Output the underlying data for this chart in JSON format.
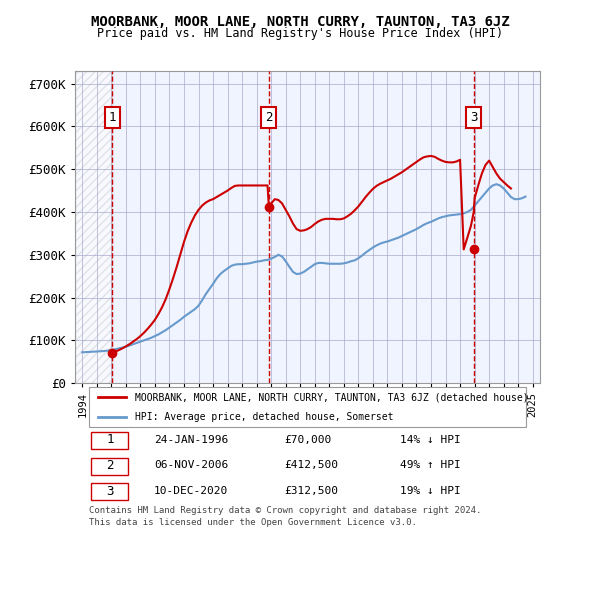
{
  "title": "MOORBANK, MOOR LANE, NORTH CURRY, TAUNTON, TA3 6JZ",
  "subtitle": "Price paid vs. HM Land Registry's House Price Index (HPI)",
  "legend_label_red": "MOORBANK, MOOR LANE, NORTH CURRY, TAUNTON, TA3 6JZ (detached house)",
  "legend_label_blue": "HPI: Average price, detached house, Somerset",
  "footer1": "Contains HM Land Registry data © Crown copyright and database right 2024.",
  "footer2": "This data is licensed under the Open Government Licence v3.0.",
  "sales": [
    {
      "num": 1,
      "date_label": "24-JAN-1996",
      "date_x": 1996.07,
      "price": 70000,
      "pct": "14%",
      "dir": "↓"
    },
    {
      "num": 2,
      "date_label": "06-NOV-2006",
      "date_x": 2006.84,
      "price": 412500,
      "pct": "49%",
      "dir": "↑"
    },
    {
      "num": 3,
      "date_label": "10-DEC-2020",
      "date_x": 2020.94,
      "price": 312500,
      "pct": "19%",
      "dir": "↓"
    }
  ],
  "ylim": [
    0,
    730000
  ],
  "xlim": [
    1993.5,
    2025.5
  ],
  "yticks": [
    0,
    100000,
    200000,
    300000,
    400000,
    500000,
    600000,
    700000
  ],
  "ytick_labels": [
    "£0",
    "£100K",
    "£200K",
    "£300K",
    "£400K",
    "£500K",
    "£600K",
    "£700K"
  ],
  "xticks": [
    1994,
    1995,
    1996,
    1997,
    1998,
    1999,
    2000,
    2001,
    2002,
    2003,
    2004,
    2005,
    2006,
    2007,
    2008,
    2009,
    2010,
    2011,
    2012,
    2013,
    2014,
    2015,
    2016,
    2017,
    2018,
    2019,
    2020,
    2021,
    2022,
    2023,
    2024,
    2025
  ],
  "hpi_x": [
    1994,
    1994.25,
    1994.5,
    1994.75,
    1995,
    1995.25,
    1995.5,
    1995.75,
    1996,
    1996.25,
    1996.5,
    1996.75,
    1997,
    1997.25,
    1997.5,
    1997.75,
    1998,
    1998.25,
    1998.5,
    1998.75,
    1999,
    1999.25,
    1999.5,
    1999.75,
    2000,
    2000.25,
    2000.5,
    2000.75,
    2001,
    2001.25,
    2001.5,
    2001.75,
    2002,
    2002.25,
    2002.5,
    2002.75,
    2003,
    2003.25,
    2003.5,
    2003.75,
    2004,
    2004.25,
    2004.5,
    2004.75,
    2005,
    2005.25,
    2005.5,
    2005.75,
    2006,
    2006.25,
    2006.5,
    2006.75,
    2007,
    2007.25,
    2007.5,
    2007.75,
    2008,
    2008.25,
    2008.5,
    2008.75,
    2009,
    2009.25,
    2009.5,
    2009.75,
    2010,
    2010.25,
    2010.5,
    2010.75,
    2011,
    2011.25,
    2011.5,
    2011.75,
    2012,
    2012.25,
    2012.5,
    2012.75,
    2013,
    2013.25,
    2013.5,
    2013.75,
    2014,
    2014.25,
    2014.5,
    2014.75,
    2015,
    2015.25,
    2015.5,
    2015.75,
    2016,
    2016.25,
    2016.5,
    2016.75,
    2017,
    2017.25,
    2017.5,
    2017.75,
    2018,
    2018.25,
    2018.5,
    2018.75,
    2019,
    2019.25,
    2019.5,
    2019.75,
    2020,
    2020.25,
    2020.5,
    2020.75,
    2021,
    2021.25,
    2021.5,
    2021.75,
    2022,
    2022.25,
    2022.5,
    2022.75,
    2023,
    2023.25,
    2023.5,
    2023.75,
    2024,
    2024.25,
    2024.5
  ],
  "hpi_y": [
    72000,
    72500,
    73000,
    73500,
    74000,
    74500,
    75000,
    76000,
    77000,
    79000,
    81000,
    83000,
    85000,
    88000,
    91000,
    94000,
    97000,
    100000,
    103000,
    106000,
    110000,
    114000,
    119000,
    124000,
    130000,
    136000,
    142000,
    148000,
    155000,
    161000,
    167000,
    173000,
    181000,
    194000,
    208000,
    220000,
    232000,
    245000,
    255000,
    262000,
    268000,
    274000,
    277000,
    278000,
    278000,
    279000,
    280000,
    282000,
    284000,
    285000,
    287000,
    288000,
    291000,
    295000,
    300000,
    296000,
    285000,
    272000,
    260000,
    255000,
    256000,
    260000,
    266000,
    272000,
    278000,
    281000,
    281000,
    280000,
    279000,
    279000,
    279000,
    279000,
    280000,
    282000,
    285000,
    287000,
    292000,
    298000,
    305000,
    311000,
    317000,
    322000,
    326000,
    329000,
    331000,
    334000,
    337000,
    340000,
    344000,
    348000,
    352000,
    356000,
    360000,
    365000,
    370000,
    374000,
    377000,
    381000,
    385000,
    388000,
    390000,
    392000,
    393000,
    394000,
    395000,
    397000,
    400000,
    405000,
    415000,
    425000,
    435000,
    445000,
    455000,
    462000,
    465000,
    462000,
    455000,
    445000,
    435000,
    430000,
    430000,
    432000,
    436000
  ],
  "property_x": [
    1994,
    1994.25,
    1994.5,
    1994.75,
    1995,
    1995.25,
    1995.5,
    1995.75,
    1996,
    1996.07,
    1996.25,
    1996.5,
    1996.75,
    1997,
    1997.25,
    1997.5,
    1997.75,
    1998,
    1998.25,
    1998.5,
    1998.75,
    1999,
    1999.25,
    1999.5,
    1999.75,
    2000,
    2000.25,
    2000.5,
    2000.75,
    2001,
    2001.25,
    2001.5,
    2001.75,
    2002,
    2002.25,
    2002.5,
    2002.75,
    2003,
    2003.25,
    2003.5,
    2003.75,
    2004,
    2004.25,
    2004.5,
    2004.75,
    2005,
    2005.25,
    2005.5,
    2005.75,
    2006,
    2006.25,
    2006.5,
    2006.75,
    2006.84,
    2007,
    2007.25,
    2007.5,
    2007.75,
    2008,
    2008.25,
    2008.5,
    2008.75,
    2009,
    2009.25,
    2009.5,
    2009.75,
    2010,
    2010.25,
    2010.5,
    2010.75,
    2011,
    2011.25,
    2011.5,
    2011.75,
    2012,
    2012.25,
    2012.5,
    2012.75,
    2013,
    2013.25,
    2013.5,
    2013.75,
    2014,
    2014.25,
    2014.5,
    2014.75,
    2015,
    2015.25,
    2015.5,
    2015.75,
    2016,
    2016.25,
    2016.5,
    2016.75,
    2017,
    2017.25,
    2017.5,
    2017.75,
    2018,
    2018.25,
    2018.5,
    2018.75,
    2019,
    2019.25,
    2019.5,
    2019.75,
    2020,
    2020.25,
    2020.5,
    2020.75,
    2020.94,
    2021,
    2021.25,
    2021.5,
    2021.75,
    2022,
    2022.25,
    2022.5,
    2022.75,
    2023,
    2023.25,
    2023.5,
    2023.75,
    2024,
    2024.25,
    2024.5
  ],
  "property_y": [
    null,
    null,
    null,
    null,
    null,
    null,
    null,
    null,
    null,
    70000,
    73000,
    77000,
    81000,
    86000,
    91000,
    97000,
    103000,
    110000,
    118000,
    127000,
    137000,
    148000,
    162000,
    178000,
    197000,
    220000,
    245000,
    272000,
    301000,
    330000,
    355000,
    375000,
    392000,
    405000,
    415000,
    422000,
    427000,
    430000,
    435000,
    440000,
    445000,
    450000,
    456000,
    461000,
    462000,
    462000,
    462000,
    462000,
    462000,
    462000,
    462000,
    462000,
    462000,
    412500,
    420000,
    430000,
    428000,
    420000,
    405000,
    390000,
    373000,
    360000,
    356000,
    357000,
    360000,
    365000,
    372000,
    378000,
    382000,
    384000,
    384000,
    384000,
    383000,
    383000,
    385000,
    390000,
    396000,
    404000,
    413000,
    424000,
    435000,
    445000,
    454000,
    461000,
    466000,
    470000,
    474000,
    478000,
    483000,
    488000,
    493000,
    499000,
    505000,
    511000,
    517000,
    523000,
    528000,
    530000,
    531000,
    529000,
    524000,
    520000,
    517000,
    516000,
    516000,
    518000,
    522000,
    312500,
    340000,
    368000,
    400000,
    432000,
    462000,
    490000,
    510000,
    520000,
    505000,
    490000,
    478000,
    470000,
    462000,
    455000
  ],
  "bg_color": "#f0f4ff",
  "hatch_color": "#cccccc",
  "red_color": "#cc0000",
  "blue_color": "#6699cc",
  "grid_color": "#aaaacc"
}
